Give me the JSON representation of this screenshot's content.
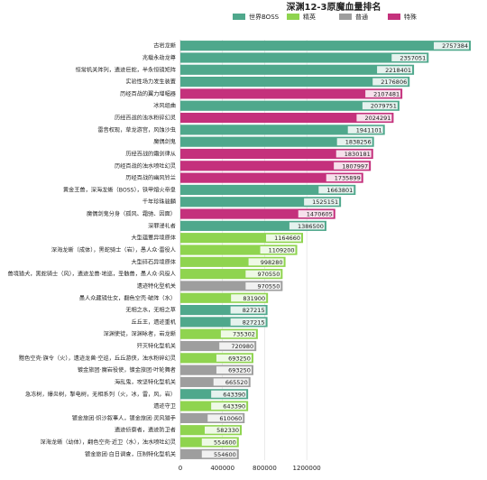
{
  "chart_data": {
    "type": "bar",
    "orientation": "horizontal",
    "title": "深渊12-3原魔血量排名",
    "categories": [
      "古岩龙蜥",
      "兆载永劫龙尊",
      "恒常机关阵列，遗迹巨蛇，半永恒镜矩阵",
      "实验性场力发生装置",
      "历经百战的翼力增幅器",
      "冰风组曲",
      "历经百战的浊水粉碎幻灵",
      "雷音权现，草龙游宫，风蚀沙虫",
      "魔偶剑鬼",
      "历经百战的霜剑律从",
      "历经百战的浊水喷吐幻灵",
      "历经百战的幽风铃兰",
      "黄金王兽，深海龙蜥（BOSS），铁甲熔火帝皇",
      "千年珍珠骏麟",
      "魔偶剑鬼分身（孤风、霜驰、因面）",
      "深罪浸礼者",
      "大型蕴蕈异境原体",
      "深海龙蜥（成体），黑蛇骑士（岩），愚人众·雷役人",
      "大型碎石异境原体",
      "兽境猎犬，黑蛇骑士（风），遗迹龙兽·地巡，圣骸兽，愚人众·风役人",
      "遗迹特化型机关",
      "愚人众藏镜仕女，翻色空壳·破阵（水）",
      "无相之水，无相之草",
      "丘丘王，遗迹重机",
      "深渊使徒，深渊咏者，岩龙蜥",
      "歼灭特化型机关",
      "黯色空壳·旗令（火），遗迹龙兽·空巡，丘丘游侠，浊水粉碎幻灵",
      "镀金旅团·魔岩役使，镀金旅团·叶轮舞者",
      "海乱鬼，攻坚特化型机关",
      "急冻树，爆炎树，掣电树，无相系列（火，冰，雷，风，岩）",
      "遗迹守卫",
      "镀金旅团·炽沙叙事人，镀金旅团·灵风猎手",
      "遗迹侦察者，遗迹防卫者",
      "深海龙蜥（幼体），翻色空壳·近卫（水），浊水喷吐幻灵",
      "镀金旅团·白日调查，压制特化型机关"
    ],
    "series": [
      {
        "name": "世界BOSS",
        "color": "#4fa88c",
        "values": [
          2757384,
          2357051,
          2218401,
          2176806,
          null,
          2079751,
          null,
          1941101,
          1838256,
          null,
          null,
          null,
          1663801,
          1525151,
          null,
          1386500,
          null,
          null,
          null,
          null,
          null,
          null,
          827215,
          827215,
          null,
          null,
          null,
          null,
          null,
          643390,
          null,
          null,
          null,
          null,
          null
        ]
      },
      {
        "name": "精英",
        "color": "#8fd44f",
        "values": [
          null,
          null,
          null,
          null,
          null,
          null,
          null,
          null,
          null,
          null,
          null,
          null,
          null,
          null,
          null,
          null,
          1164660,
          1109200,
          998280,
          970550,
          null,
          831900,
          null,
          null,
          735302,
          null,
          693250,
          null,
          null,
          null,
          643390,
          null,
          582330,
          554600,
          null
        ]
      },
      {
        "name": "普通",
        "color": "#9e9e9e",
        "values": [
          null,
          null,
          null,
          null,
          null,
          null,
          null,
          null,
          null,
          null,
          null,
          null,
          null,
          null,
          null,
          null,
          null,
          null,
          null,
          null,
          970550,
          null,
          null,
          null,
          null,
          720980,
          null,
          693250,
          665520,
          null,
          null,
          610060,
          null,
          null,
          554600
        ]
      },
      {
        "name": "特殊",
        "color": "#c4317c",
        "values": [
          null,
          null,
          null,
          null,
          2107481,
          null,
          2024291,
          null,
          null,
          1830181,
          1807997,
          1735899,
          null,
          null,
          1470605,
          null,
          null,
          null,
          null,
          null,
          null,
          null,
          null,
          null,
          null,
          null,
          null,
          null,
          null,
          null,
          null,
          null,
          null,
          null,
          null
        ]
      }
    ],
    "xlim": [
      0,
      2800000
    ],
    "xticks": [
      0,
      400000,
      800000,
      1200000
    ],
    "grid": true
  }
}
